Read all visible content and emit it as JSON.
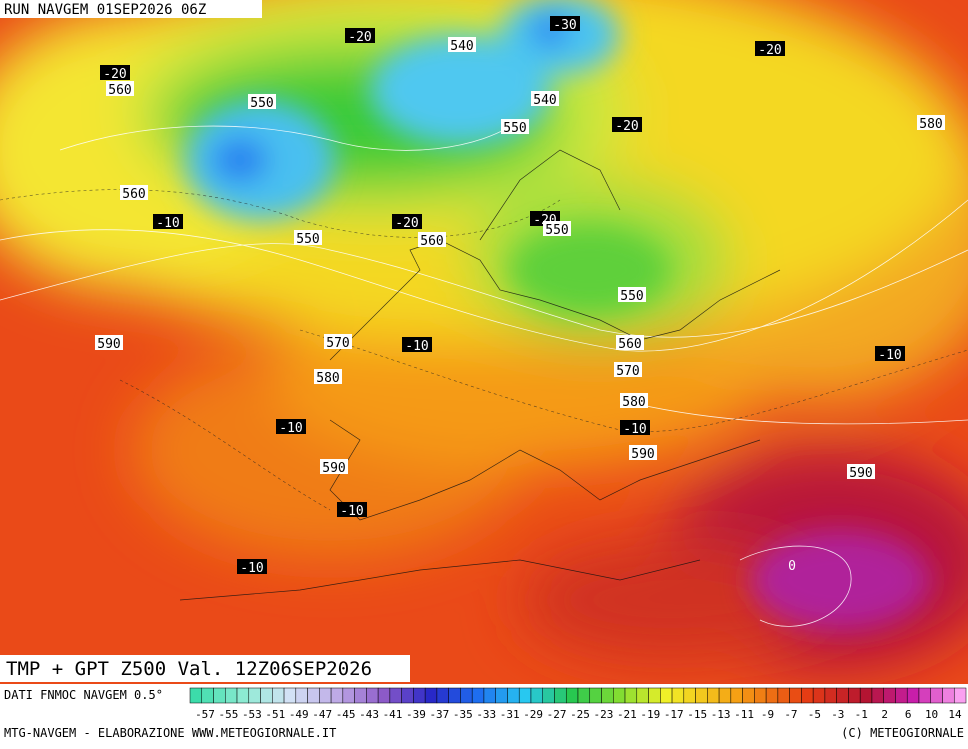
{
  "header": {
    "run": "RUN NAVGEM 01SEP2026 06Z"
  },
  "map": {
    "title": "TMP + GPT Z500 Val. 12Z06SEP2026",
    "temperature_labels": [
      "-30",
      "-20",
      "-20",
      "-20",
      "-20",
      "-20",
      "-20",
      "-10",
      "-10",
      "-10",
      "-10",
      "-10",
      "-10",
      "-10"
    ],
    "zero_label": "0",
    "height_labels": [
      "540",
      "540",
      "560",
      "550",
      "550",
      "580",
      "560",
      "550",
      "560",
      "550",
      "550",
      "590",
      "570",
      "560",
      "580",
      "570",
      "580",
      "590",
      "590",
      "590"
    ]
  },
  "legend": {
    "source": "DATI FNMOC NAVGEM 0.5°",
    "ticks": [
      "-57",
      "-55",
      "-53",
      "-51",
      "-49",
      "-47",
      "-45",
      "-43",
      "-41",
      "-39",
      "-37",
      "-35",
      "-33",
      "-31",
      "-29",
      "-27",
      "-25",
      "-23",
      "-21",
      "-19",
      "-17",
      "-15",
      "-13",
      "-11",
      "-9",
      "-7",
      "-5",
      "-3",
      "-1",
      "2",
      "6",
      "10",
      "14"
    ]
  },
  "footer": {
    "left": "MTG-NAVGEM - ELABORAZIONE WWW.METEOGIORNALE.IT",
    "right": "(C) METEOGIORNALE"
  }
}
